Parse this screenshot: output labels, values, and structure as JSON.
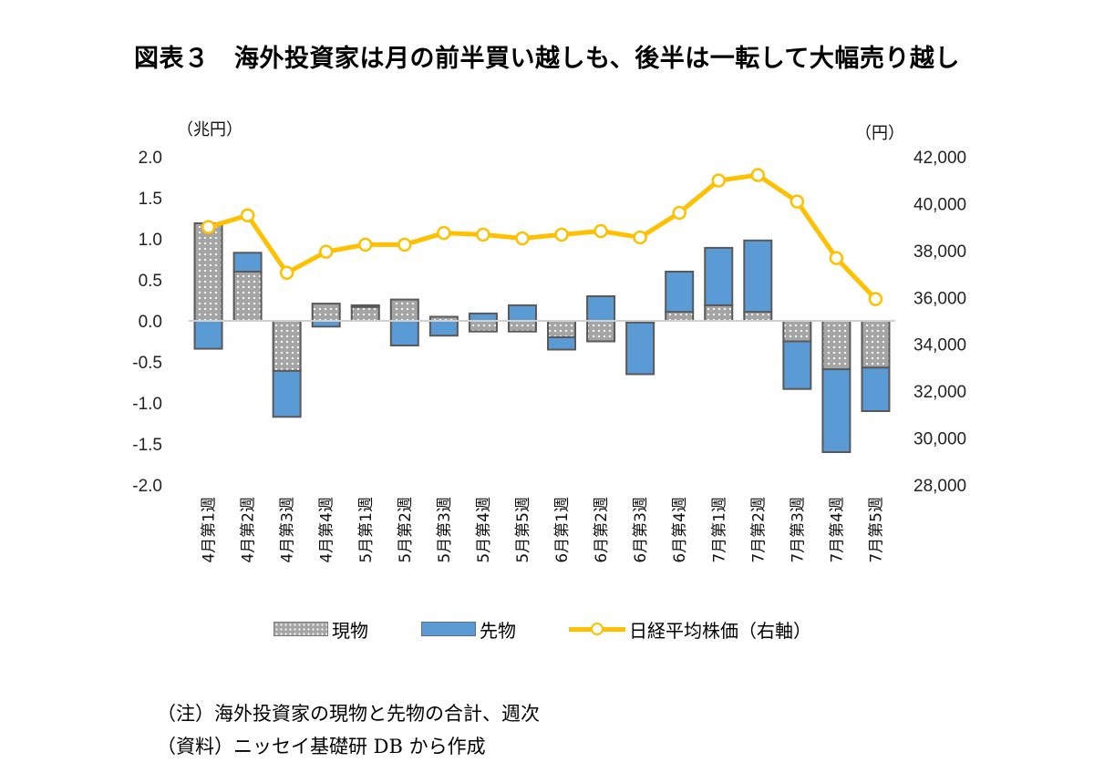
{
  "title": "図表３　海外投資家は月の前半買い越しも、後半は一転して大幅売り越し",
  "chart_data": {
    "type": "bar",
    "stacked": true,
    "title": "図表３　海外投資家は月の前半買い越しも、後半は一転して大幅売り越し",
    "xlabel": "",
    "ylabel": "（兆円）",
    "y2label": "（円）",
    "ylim": [
      -2.0,
      2.0
    ],
    "y2lim": [
      28000,
      42000
    ],
    "yticks": [
      2.0,
      1.5,
      1.0,
      0.5,
      0.0,
      -0.5,
      -1.0,
      -1.5,
      -2.0
    ],
    "ytick_labels": [
      "2.0",
      "1.5",
      "1.0",
      "0.5",
      "0.0",
      "-0.5",
      "-1.0",
      "-1.5",
      "-2.0"
    ],
    "y2ticks": [
      42000,
      40000,
      38000,
      36000,
      34000,
      32000,
      30000,
      28000
    ],
    "y2tick_labels": [
      "42,000",
      "40,000",
      "38,000",
      "36,000",
      "34,000",
      "32,000",
      "30,000",
      "28,000"
    ],
    "grid": false,
    "legend_position": "bottom",
    "categories": [
      "4月第1週",
      "4月第2週",
      "4月第3週",
      "4月第4週",
      "5月第1週",
      "5月第2週",
      "5月第3週",
      "5月第4週",
      "5月第5週",
      "6月第1週",
      "6月第2週",
      "6月第3週",
      "6月第4週",
      "7月第1週",
      "7月第2週",
      "7月第3週",
      "7月第4週",
      "7月第5週"
    ],
    "series": [
      {
        "name": "現物",
        "type": "bar",
        "axis": "left",
        "color": "#a5a5a5",
        "values": [
          1.19,
          0.6,
          -0.61,
          0.21,
          0.17,
          0.26,
          0.05,
          -0.13,
          -0.13,
          -0.2,
          -0.25,
          -0.02,
          0.11,
          0.19,
          0.11,
          -0.25,
          -0.59,
          -0.57
        ]
      },
      {
        "name": "先物",
        "type": "bar",
        "axis": "left",
        "color": "#5b9bd5",
        "values": [
          -0.34,
          0.23,
          -0.56,
          -0.07,
          0.02,
          -0.3,
          -0.18,
          0.09,
          0.19,
          -0.15,
          0.3,
          -0.63,
          0.49,
          0.7,
          0.87,
          -0.58,
          -1.01,
          -0.53
        ]
      },
      {
        "name": "日経平均株価（右軸）",
        "type": "line",
        "axis": "right",
        "color": "#ffc000",
        "values": [
          39000,
          39500,
          37050,
          37950,
          38250,
          38250,
          38750,
          38680,
          38520,
          38680,
          38830,
          38560,
          39610,
          40990,
          41220,
          40090,
          37680,
          35930
        ]
      }
    ]
  },
  "legend": {
    "spot_label": "現物",
    "futures_label": "先物",
    "line_label": "日経平均株価（右軸）"
  },
  "notes": {
    "note": "（注）海外投資家の現物と先物の合計、週次",
    "source": "（資料）ニッセイ基礎研 DB から作成"
  }
}
